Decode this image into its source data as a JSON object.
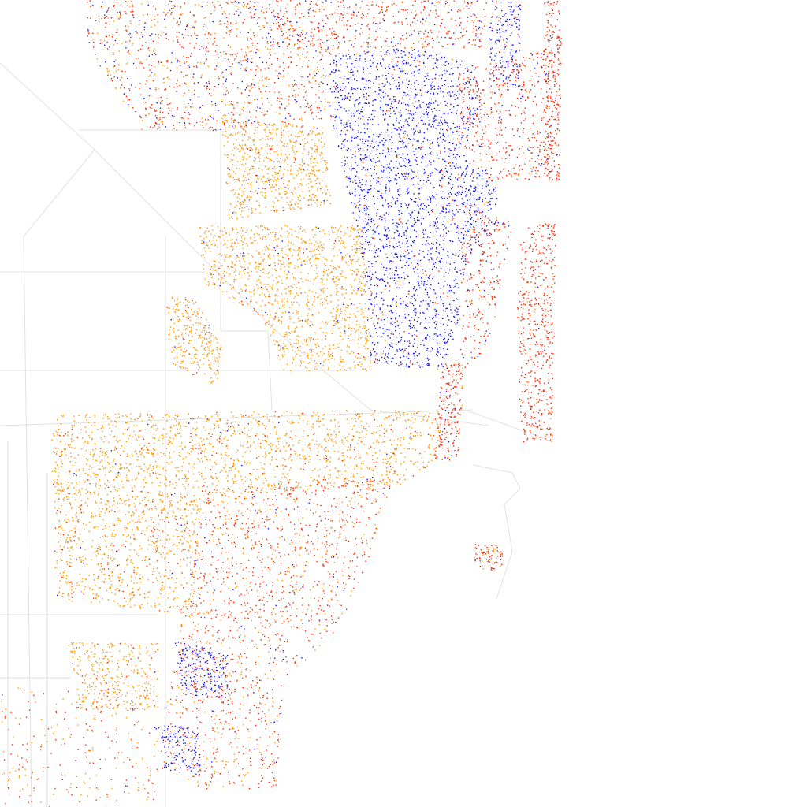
{
  "map": {
    "colors": [
      "#ff2a00",
      "#1a1aff",
      "#ff9900"
    ]
  }
}
